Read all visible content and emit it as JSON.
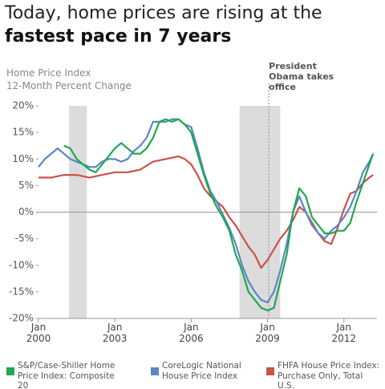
{
  "chart_data": {
    "type": "line",
    "title": "Today, home prices are rising at the",
    "title_emphasis": "fastest pace in 7 years",
    "ylabel": "Home Price Index",
    "subtitle": "12-Month Percent Change",
    "annotation": {
      "text": "President Obama takes office",
      "x": 2009.05
    },
    "shaded_periods": [
      [
        2001.2,
        2001.9
      ],
      [
        2007.9,
        2009.5
      ]
    ],
    "xlim": [
      2000,
      2013.3
    ],
    "xticks": [
      {
        "value": 2000,
        "label": "Jan 2000"
      },
      {
        "value": 2003,
        "label": "Jan 2003"
      },
      {
        "value": 2006,
        "label": "Jan 2006"
      },
      {
        "value": 2009,
        "label": "Jan 2009"
      },
      {
        "value": 2012,
        "label": "Jan 2012"
      }
    ],
    "ylim": [
      -20,
      20
    ],
    "yticks": [
      {
        "value": 20,
        "label": "20%"
      },
      {
        "value": 15,
        "label": "15%"
      },
      {
        "value": 10,
        "label": "10%"
      },
      {
        "value": 5,
        "label": "5%"
      },
      {
        "value": 0,
        "label": "0%"
      },
      {
        "value": -5,
        "label": "-5%"
      },
      {
        "value": -10,
        "label": "-10%"
      },
      {
        "value": -15,
        "label": "-15%"
      },
      {
        "value": -20,
        "label": "-20%"
      }
    ],
    "series": [
      {
        "name": "S&P/Case-Shiller Home Price Index: Composite 20",
        "color": "#1ea84f",
        "x": [
          2001.0,
          2001.25,
          2001.5,
          2001.75,
          2002.0,
          2002.25,
          2002.5,
          2002.75,
          2003.0,
          2003.25,
          2003.5,
          2003.75,
          2004.0,
          2004.25,
          2004.5,
          2004.75,
          2005.0,
          2005.25,
          2005.5,
          2005.75,
          2006.0,
          2006.25,
          2006.5,
          2006.75,
          2007.0,
          2007.25,
          2007.5,
          2007.75,
          2008.0,
          2008.25,
          2008.5,
          2008.75,
          2009.0,
          2009.25,
          2009.5,
          2009.75,
          2010.0,
          2010.25,
          2010.5,
          2010.75,
          2011.0,
          2011.25,
          2011.5,
          2011.75,
          2012.0,
          2012.25,
          2012.5,
          2012.75,
          2013.0,
          2013.15
        ],
        "values": [
          12.5,
          12,
          10,
          9,
          8,
          7.5,
          9,
          10.5,
          12,
          13,
          12,
          11,
          11,
          12,
          14,
          17,
          17.5,
          17,
          17.5,
          16.5,
          15,
          11,
          7,
          3.5,
          1,
          -1,
          -3.5,
          -8,
          -11,
          -15,
          -16.5,
          -18,
          -18.5,
          -18,
          -13,
          -8,
          0,
          4.5,
          3,
          -1,
          -2.5,
          -4,
          -4,
          -3.5,
          -3.5,
          -2,
          2,
          5.5,
          9,
          11
        ]
      },
      {
        "name": "CoreLogic National House Price Index",
        "color": "#5b86c5",
        "x": [
          2000.0,
          2000.25,
          2000.5,
          2000.75,
          2001.0,
          2001.25,
          2001.5,
          2001.75,
          2002.0,
          2002.25,
          2002.5,
          2002.75,
          2003.0,
          2003.25,
          2003.5,
          2003.75,
          2004.0,
          2004.25,
          2004.5,
          2004.75,
          2005.0,
          2005.25,
          2005.5,
          2005.75,
          2006.0,
          2006.25,
          2006.5,
          2006.75,
          2007.0,
          2007.25,
          2007.5,
          2007.75,
          2008.0,
          2008.25,
          2008.5,
          2008.75,
          2009.0,
          2009.25,
          2009.5,
          2009.75,
          2010.0,
          2010.25,
          2010.5,
          2010.75,
          2011.0,
          2011.25,
          2011.5,
          2011.75,
          2012.0,
          2012.25,
          2012.5,
          2012.75,
          2013.0,
          2013.15
        ],
        "values": [
          8.5,
          10,
          11,
          12,
          11,
          10,
          9.5,
          9,
          8.5,
          8.5,
          9.5,
          10,
          10,
          9.5,
          10,
          11.5,
          12.5,
          14,
          17,
          17,
          17,
          17.5,
          17.5,
          16.5,
          16,
          12,
          7.5,
          4,
          2,
          -0.5,
          -3,
          -6,
          -10,
          -13,
          -15,
          -16.5,
          -17,
          -15,
          -11,
          -6,
          0,
          3,
          0,
          -2.5,
          -4,
          -5,
          -3.5,
          -2.5,
          -1,
          1,
          4,
          7.5,
          9.5,
          11
        ]
      },
      {
        "name": "FHFA House Price Index: Purchase Only, Total U.S.",
        "color": "#c9524a",
        "x": [
          2000.0,
          2000.5,
          2001.0,
          2001.5,
          2002.0,
          2002.5,
          2003.0,
          2003.5,
          2004.0,
          2004.5,
          2005.0,
          2005.5,
          2005.75,
          2006.0,
          2006.25,
          2006.5,
          2006.75,
          2007.0,
          2007.25,
          2007.5,
          2007.75,
          2008.0,
          2008.25,
          2008.5,
          2008.75,
          2009.0,
          2009.25,
          2009.5,
          2009.75,
          2010.0,
          2010.25,
          2010.5,
          2010.75,
          2011.0,
          2011.25,
          2011.5,
          2011.75,
          2012.0,
          2012.25,
          2012.5,
          2012.75,
          2013.0,
          2013.15
        ],
        "values": [
          6.5,
          6.5,
          7,
          7,
          6.5,
          7,
          7.5,
          7.5,
          8,
          9.5,
          10,
          10.5,
          10,
          9,
          7,
          4.5,
          3,
          2,
          1,
          -1,
          -2.5,
          -4.5,
          -6.5,
          -8,
          -10.5,
          -9,
          -7,
          -5,
          -3.5,
          -1.5,
          1,
          0,
          -2,
          -4,
          -5.5,
          -6,
          -3,
          0.5,
          3.5,
          4,
          5.5,
          6.5,
          7
        ]
      }
    ]
  }
}
